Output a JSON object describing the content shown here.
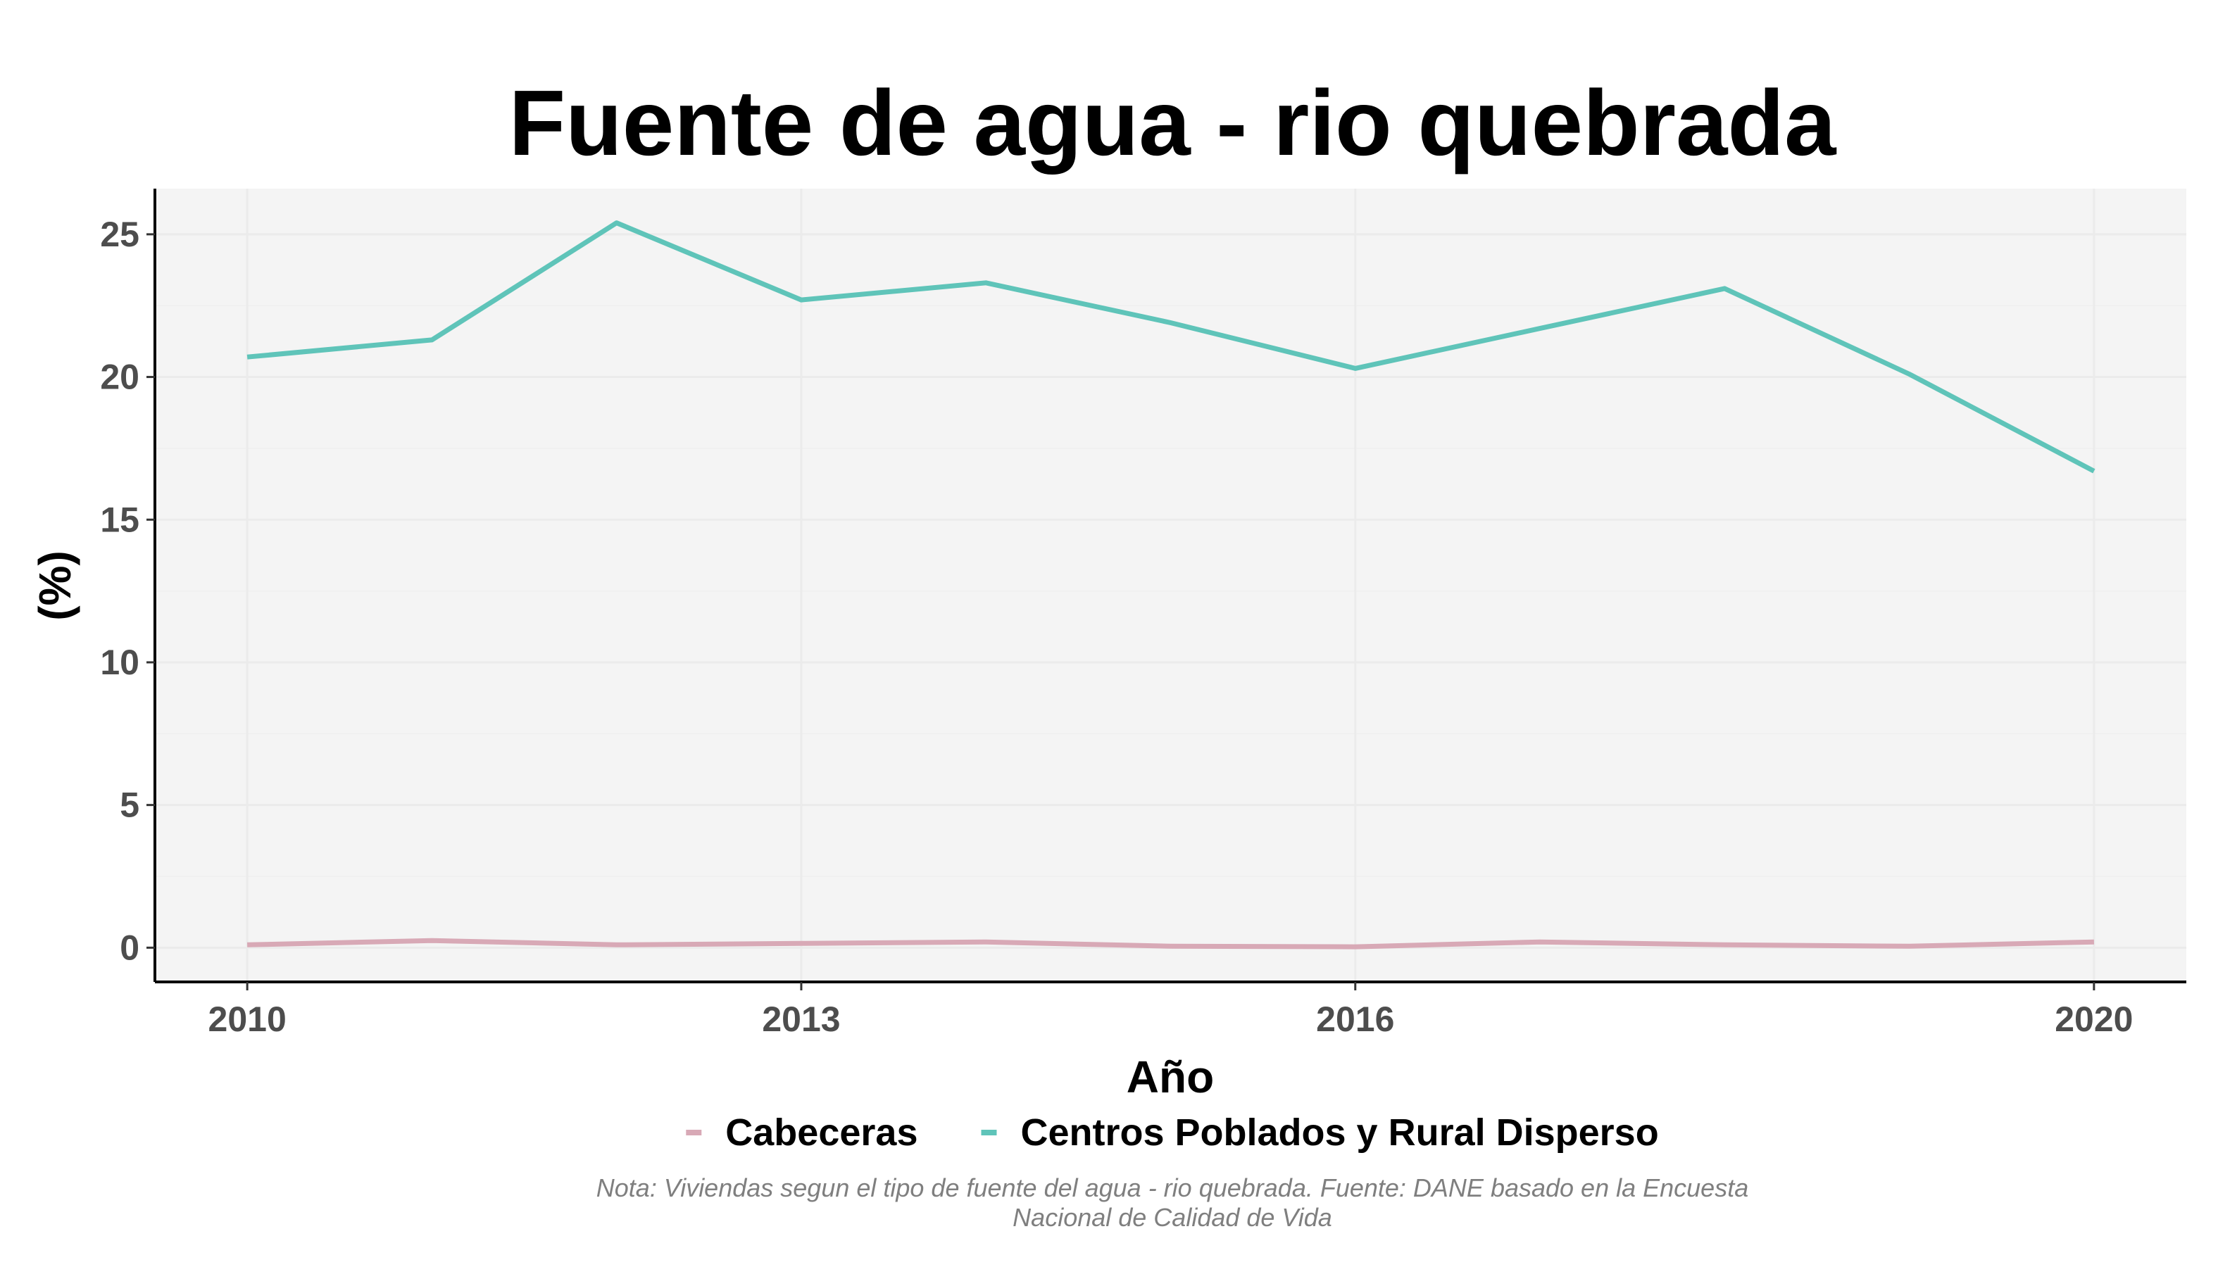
{
  "chart_data": {
    "type": "line",
    "title": "Fuente de agua - rio quebrada",
    "xlabel": "Año",
    "ylabel": "(%)",
    "x": [
      2010,
      2011,
      2012,
      2013,
      2014,
      2015,
      2016,
      2017,
      2018,
      2019,
      2020
    ],
    "xlim": [
      2009.5,
      2020.5
    ],
    "ylim": [
      -1.2,
      26.6
    ],
    "x_ticks": [
      2010,
      2013,
      2016,
      2020
    ],
    "y_ticks": [
      0,
      5,
      10,
      15,
      20,
      25
    ],
    "grid": true,
    "legend_position": "bottom",
    "series": [
      {
        "name": "Cabeceras",
        "color": "#d8a9b6",
        "values": [
          0.1,
          0.25,
          0.1,
          0.15,
          0.2,
          0.05,
          0.03,
          0.2,
          0.1,
          0.05,
          0.2
        ]
      },
      {
        "name": "Centros Poblados y Rural Disperso",
        "color": "#5fc4b9",
        "values": [
          20.7,
          21.3,
          25.4,
          22.7,
          23.3,
          21.9,
          20.3,
          21.7,
          23.1,
          20.1,
          16.7
        ]
      }
    ],
    "caption": "Nota: Viviendas segun el tipo de fuente del agua - rio quebrada. Fuente: DANE basado en la Encuesta Nacional de Calidad de Vida",
    "caption_lines": [
      "Nota: Viviendas segun el tipo de fuente del agua - rio quebrada. Fuente: DANE basado en la Encuesta",
      "Nacional de Calidad de Vida"
    ]
  }
}
